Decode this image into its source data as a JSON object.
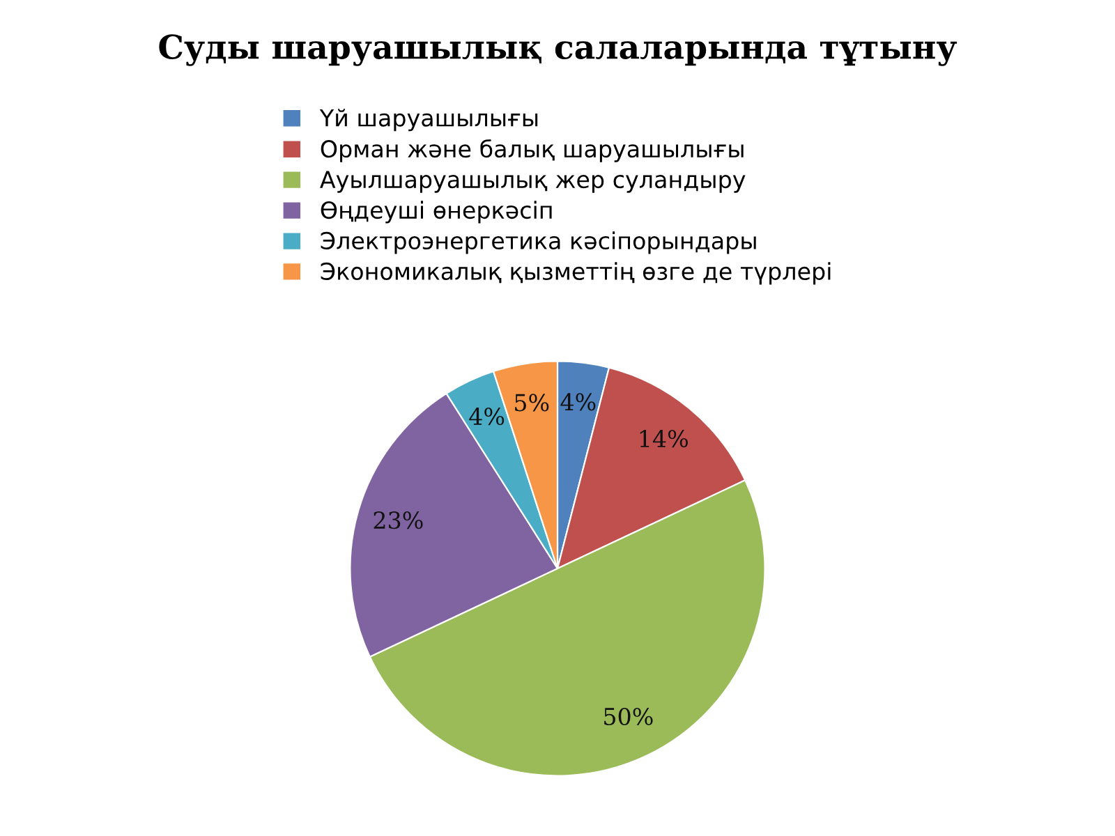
{
  "chart_data": {
    "type": "pie",
    "title": "Суды шаруашылық салаларында тұтыну",
    "categories": [
      "Үй шаруашылығы",
      "Орман және балық шаруашылығы",
      "Ауылшаруашылық жер суландыру",
      "Өңдеуші өнеркәсіп",
      "Электроэнергетика кәсіпорындары",
      "Экономикалық қызметтің өзге де түрлері"
    ],
    "values": [
      4,
      14,
      50,
      23,
      4,
      5
    ],
    "value_labels": [
      "4%",
      "14%",
      "50%",
      "23%",
      "4%",
      "5%"
    ],
    "colors": [
      "#4f81bd",
      "#c0504d",
      "#9bbb59",
      "#8064a2",
      "#4bacc6",
      "#f79646"
    ],
    "legend": "top"
  }
}
